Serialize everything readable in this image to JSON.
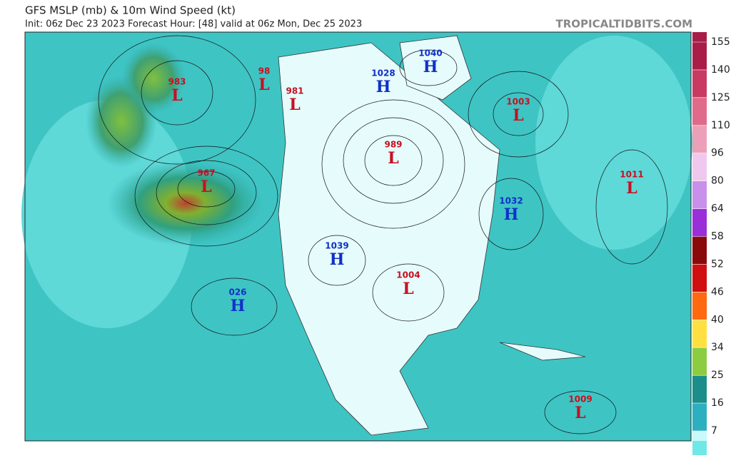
{
  "header": {
    "title": "GFS MSLP (mb) & 10m Wind Speed (kt)",
    "subtitle": "Init: 06z Dec 23 2023   Forecast Hour: [48]   valid at 06z Mon, Dec 25 2023",
    "site": "TROPICALTIDBITS.COM"
  },
  "centers": [
    {
      "type": "L",
      "value": 983
    },
    {
      "type": "L",
      "value": 98
    },
    {
      "type": "L",
      "value": 981
    },
    {
      "type": "H",
      "value": 1028
    },
    {
      "type": "H",
      "value": 1040
    },
    {
      "type": "L",
      "value": 1003
    },
    {
      "type": "L",
      "value": 989
    },
    {
      "type": "L",
      "value": 967
    },
    {
      "type": "H",
      "value": 1032
    },
    {
      "type": "L",
      "value": 1011
    },
    {
      "type": "H",
      "value": 1039
    },
    {
      "type": "L",
      "value": 1004
    },
    {
      "type": "H",
      "value": "026"
    },
    {
      "type": "L",
      "value": 1009
    }
  ],
  "colorbar": {
    "ticks": [
      155,
      140,
      125,
      110,
      96,
      80,
      64,
      58,
      52,
      46,
      40,
      34,
      25,
      16,
      7
    ],
    "colors": [
      "#a81e48",
      "#c83a62",
      "#e06a8a",
      "#eca0b8",
      "#f0c8ee",
      "#c890ea",
      "#9a2ed8",
      "#8a0a0a",
      "#d01010",
      "#ff6a10",
      "#ffe040",
      "#8ccc40",
      "#1c8e8a",
      "#2cb0c0",
      "#70e8e8"
    ]
  }
}
